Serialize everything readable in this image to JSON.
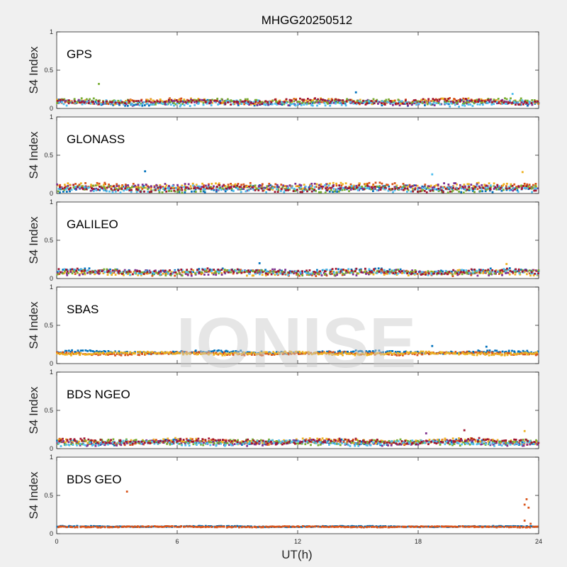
{
  "chart_data": {
    "type": "scatter",
    "title": "MHGG20250512",
    "watermark": "IONISE",
    "xlabel": "UT(h)",
    "xlim": [
      0,
      24
    ],
    "xticks": [
      0,
      6,
      12,
      18,
      24
    ],
    "ylim": [
      0,
      1
    ],
    "yticks": [
      0,
      0.5,
      1
    ],
    "ytick_labels": [
      "0",
      "0.5",
      "1"
    ],
    "grid": false,
    "series_colors": [
      "#0072BD",
      "#D95319",
      "#EDB120",
      "#7E2F8E",
      "#77AC30",
      "#4DBEEE",
      "#A2142F"
    ],
    "panels": [
      {
        "label": "GPS",
        "ylabel": "S4 Index",
        "color_indices": [
          0,
          1,
          2,
          3,
          4,
          5,
          6
        ],
        "baseline": 0.08,
        "spread": 0.05,
        "points_per_series": 160,
        "outliers": [
          {
            "x": 2.1,
            "y": 0.32,
            "c": 4
          },
          {
            "x": 14.9,
            "y": 0.21,
            "c": 0
          },
          {
            "x": 22.7,
            "y": 0.19,
            "c": 5
          }
        ]
      },
      {
        "label": "GLONASS",
        "ylabel": "S4 Index",
        "color_indices": [
          0,
          1,
          2,
          3,
          4,
          5,
          6
        ],
        "baseline": 0.08,
        "spread": 0.06,
        "points_per_series": 150,
        "outliers": [
          {
            "x": 4.4,
            "y": 0.29,
            "c": 0
          },
          {
            "x": 23.2,
            "y": 0.28,
            "c": 2
          },
          {
            "x": 18.7,
            "y": 0.25,
            "c": 5
          }
        ]
      },
      {
        "label": "GALILEO",
        "ylabel": "S4 Index",
        "color_indices": [
          0,
          1,
          2,
          3,
          4,
          5,
          6
        ],
        "baseline": 0.09,
        "spread": 0.05,
        "points_per_series": 140,
        "outliers": [
          {
            "x": 10.1,
            "y": 0.2,
            "c": 0
          },
          {
            "x": 22.4,
            "y": 0.19,
            "c": 2
          }
        ]
      },
      {
        "label": "SBAS",
        "ylabel": "S4 Index",
        "color_indices": [
          0,
          1,
          2
        ],
        "baseline": 0.14,
        "spread": 0.03,
        "points_per_series": 260,
        "outliers": [
          {
            "x": 18.7,
            "y": 0.23,
            "c": 0
          },
          {
            "x": 21.4,
            "y": 0.22,
            "c": 0
          }
        ]
      },
      {
        "label": "BDS NGEO",
        "ylabel": "S4 Index",
        "color_indices": [
          0,
          1,
          2,
          3,
          4,
          5,
          6
        ],
        "baseline": 0.08,
        "spread": 0.05,
        "points_per_series": 160,
        "outliers": [
          {
            "x": 20.3,
            "y": 0.24,
            "c": 6
          },
          {
            "x": 23.3,
            "y": 0.23,
            "c": 2
          },
          {
            "x": 18.4,
            "y": 0.2,
            "c": 3
          }
        ]
      },
      {
        "label": "BDS GEO",
        "ylabel": "S4 Index",
        "color_indices": [
          0,
          1
        ],
        "baseline": 0.09,
        "spread": 0.01,
        "points_per_series": 280,
        "outliers": [
          {
            "x": 3.5,
            "y": 0.55,
            "c": 1
          },
          {
            "x": 23.4,
            "y": 0.45,
            "c": 1
          },
          {
            "x": 23.3,
            "y": 0.38,
            "c": 1
          },
          {
            "x": 23.5,
            "y": 0.34,
            "c": 1
          },
          {
            "x": 23.3,
            "y": 0.17,
            "c": 1
          },
          {
            "x": 23.6,
            "y": 0.13,
            "c": 1
          }
        ]
      }
    ]
  }
}
